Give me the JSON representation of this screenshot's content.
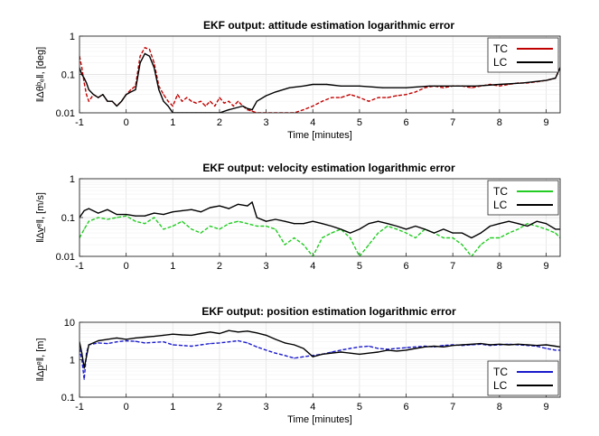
{
  "chart_data": [
    {
      "type": "line",
      "title": "EKF output: attitude estimation logarithmic error",
      "xlabel": "Time [minutes]",
      "ylabel": "‖Δθ̲ᵇₑ‖, [deg]",
      "yscale": "log",
      "xlim": [
        -1,
        9.3
      ],
      "ylim": [
        0.01,
        1
      ],
      "xticks": [
        "-1",
        "0",
        "1",
        "2",
        "3",
        "4",
        "5",
        "6",
        "7",
        "8",
        "9"
      ],
      "yticks": [
        "0.01",
        "0.1",
        "1"
      ],
      "legend_position": "top-right",
      "series": [
        {
          "name": "TC",
          "color": "#c00000",
          "style": "dashed",
          "x": [
            -1.0,
            -0.95,
            -0.9,
            -0.85,
            -0.8,
            -0.7,
            -0.6,
            -0.5,
            -0.4,
            -0.3,
            -0.2,
            -0.1,
            0.0,
            0.1,
            0.2,
            0.3,
            0.4,
            0.5,
            0.6,
            0.7,
            0.8,
            0.9,
            1.0,
            1.1,
            1.2,
            1.3,
            1.4,
            1.5,
            1.6,
            1.7,
            1.8,
            1.9,
            2.0,
            2.1,
            2.2,
            2.3,
            2.4,
            2.5,
            2.6,
            2.7,
            2.8,
            3.6,
            3.8,
            4.0,
            4.2,
            4.4,
            4.6,
            4.8,
            5.0,
            5.2,
            5.4,
            5.6,
            5.8,
            6.0,
            6.2,
            6.4,
            6.6,
            6.8,
            7.0,
            7.2,
            7.4,
            7.6,
            7.8,
            8.0,
            8.2,
            8.4,
            8.6,
            8.8,
            9.0,
            9.2,
            9.3
          ],
          "values": [
            0.3,
            0.15,
            0.06,
            0.03,
            0.02,
            0.03,
            0.025,
            0.03,
            0.02,
            0.02,
            0.015,
            0.02,
            0.03,
            0.04,
            0.05,
            0.3,
            0.5,
            0.45,
            0.2,
            0.05,
            0.03,
            0.02,
            0.015,
            0.03,
            0.02,
            0.025,
            0.02,
            0.018,
            0.02,
            0.015,
            0.02,
            0.015,
            0.025,
            0.018,
            0.02,
            0.015,
            0.02,
            0.015,
            0.012,
            0.011,
            0.01,
            0.01,
            0.012,
            0.015,
            0.02,
            0.025,
            0.025,
            0.03,
            0.025,
            0.02,
            0.025,
            0.025,
            0.028,
            0.03,
            0.035,
            0.045,
            0.05,
            0.045,
            0.05,
            0.05,
            0.045,
            0.05,
            0.055,
            0.05,
            0.055,
            0.06,
            0.06,
            0.065,
            0.07,
            0.08,
            0.15
          ]
        },
        {
          "name": "LC",
          "color": "#000000",
          "style": "solid",
          "x": [
            -1.0,
            -0.95,
            -0.9,
            -0.85,
            -0.8,
            -0.7,
            -0.6,
            -0.5,
            -0.4,
            -0.3,
            -0.2,
            -0.1,
            0.0,
            0.1,
            0.2,
            0.3,
            0.4,
            0.5,
            0.6,
            0.7,
            0.8,
            0.9,
            1.0,
            1.1,
            1.2,
            1.3,
            1.4,
            1.5,
            1.6,
            1.7,
            1.8,
            2.0,
            2.2,
            2.5,
            2.6,
            2.7,
            2.8,
            3.0,
            3.2,
            3.5,
            3.8,
            4.0,
            4.3,
            4.6,
            5.0,
            5.5,
            6.0,
            6.5,
            7.0,
            7.5,
            8.0,
            8.5,
            9.0,
            9.2,
            9.3
          ],
          "values": [
            0.15,
            0.1,
            0.08,
            0.06,
            0.04,
            0.03,
            0.025,
            0.03,
            0.02,
            0.02,
            0.015,
            0.02,
            0.03,
            0.035,
            0.04,
            0.2,
            0.35,
            0.3,
            0.15,
            0.04,
            0.02,
            0.015,
            0.01,
            0.01,
            0.01,
            0.01,
            0.01,
            0.01,
            0.01,
            0.01,
            0.01,
            0.01,
            0.012,
            0.015,
            0.013,
            0.012,
            0.02,
            0.028,
            0.035,
            0.045,
            0.05,
            0.055,
            0.055,
            0.05,
            0.05,
            0.045,
            0.045,
            0.05,
            0.05,
            0.05,
            0.055,
            0.06,
            0.07,
            0.08,
            0.15
          ]
        }
      ]
    },
    {
      "type": "line",
      "title": "EKF output: velocity estimation logarithmic error",
      "xlabel": "",
      "ylabel": "‖Δv̲ᵉ‖, [m/s]",
      "yscale": "log",
      "xlim": [
        -1,
        9.3
      ],
      "ylim": [
        0.01,
        1
      ],
      "xticks": [
        "-1",
        "0",
        "1",
        "2",
        "3",
        "4",
        "5",
        "6",
        "7",
        "8",
        "9"
      ],
      "yticks": [
        "0.01",
        "0.1",
        "1"
      ],
      "legend_position": "top-right",
      "series": [
        {
          "name": "TC",
          "color": "#22cc22",
          "style": "dashed",
          "x": [
            -1.0,
            -0.9,
            -0.8,
            -0.6,
            -0.4,
            -0.2,
            0.0,
            0.2,
            0.4,
            0.6,
            0.8,
            1.0,
            1.2,
            1.4,
            1.6,
            1.8,
            2.0,
            2.2,
            2.4,
            2.6,
            2.8,
            3.0,
            3.2,
            3.4,
            3.6,
            3.8,
            4.0,
            4.2,
            4.4,
            4.6,
            4.8,
            5.0,
            5.2,
            5.4,
            5.6,
            5.8,
            6.0,
            6.2,
            6.4,
            6.6,
            6.8,
            7.0,
            7.2,
            7.4,
            7.6,
            7.8,
            8.0,
            8.2,
            8.4,
            8.6,
            8.8,
            9.0,
            9.2,
            9.3
          ],
          "values": [
            0.03,
            0.05,
            0.08,
            0.1,
            0.09,
            0.1,
            0.11,
            0.08,
            0.07,
            0.1,
            0.05,
            0.06,
            0.08,
            0.05,
            0.04,
            0.06,
            0.05,
            0.07,
            0.08,
            0.07,
            0.06,
            0.06,
            0.05,
            0.02,
            0.03,
            0.02,
            0.01,
            0.03,
            0.04,
            0.05,
            0.03,
            0.01,
            0.02,
            0.04,
            0.06,
            0.05,
            0.04,
            0.03,
            0.05,
            0.04,
            0.03,
            0.03,
            0.02,
            0.01,
            0.02,
            0.03,
            0.03,
            0.04,
            0.05,
            0.07,
            0.06,
            0.05,
            0.04,
            0.03
          ]
        },
        {
          "name": "LC",
          "color": "#000000",
          "style": "solid",
          "x": [
            -1.0,
            -0.9,
            -0.8,
            -0.6,
            -0.4,
            -0.2,
            0.0,
            0.2,
            0.4,
            0.6,
            0.8,
            1.0,
            1.2,
            1.4,
            1.6,
            1.8,
            2.0,
            2.2,
            2.4,
            2.6,
            2.7,
            2.8,
            3.0,
            3.2,
            3.4,
            3.6,
            3.8,
            4.0,
            4.2,
            4.4,
            4.6,
            4.8,
            5.0,
            5.2,
            5.4,
            5.6,
            5.8,
            6.0,
            6.2,
            6.4,
            6.6,
            6.8,
            7.0,
            7.2,
            7.4,
            7.6,
            7.8,
            8.0,
            8.2,
            8.4,
            8.6,
            8.8,
            9.0,
            9.2,
            9.3
          ],
          "values": [
            0.1,
            0.15,
            0.17,
            0.13,
            0.16,
            0.12,
            0.12,
            0.11,
            0.11,
            0.13,
            0.12,
            0.14,
            0.15,
            0.16,
            0.14,
            0.18,
            0.2,
            0.17,
            0.22,
            0.2,
            0.25,
            0.1,
            0.08,
            0.09,
            0.08,
            0.07,
            0.07,
            0.08,
            0.07,
            0.06,
            0.05,
            0.04,
            0.05,
            0.07,
            0.08,
            0.07,
            0.06,
            0.05,
            0.06,
            0.05,
            0.04,
            0.05,
            0.04,
            0.04,
            0.03,
            0.04,
            0.06,
            0.07,
            0.08,
            0.07,
            0.06,
            0.08,
            0.07,
            0.05,
            0.05
          ]
        }
      ]
    },
    {
      "type": "line",
      "title": "EKF output: position estimation logarithmic error",
      "xlabel": "Time [minutes]",
      "ylabel": "‖Δp̲ᵉ‖, [m]",
      "yscale": "log",
      "xlim": [
        -1,
        9.3
      ],
      "ylim": [
        0.1,
        10
      ],
      "xticks": [
        "-1",
        "0",
        "1",
        "2",
        "3",
        "4",
        "5",
        "6",
        "7",
        "8",
        "9"
      ],
      "yticks": [
        "0.1",
        "1",
        "10"
      ],
      "legend_position": "bottom-right",
      "series": [
        {
          "name": "TC",
          "color": "#1a1acc",
          "style": "dashed",
          "x": [
            -1.0,
            -0.95,
            -0.9,
            -0.85,
            -0.8,
            -0.6,
            -0.4,
            -0.2,
            0.0,
            0.2,
            0.4,
            0.6,
            0.8,
            1.0,
            1.2,
            1.4,
            1.6,
            1.8,
            2.0,
            2.2,
            2.4,
            2.6,
            2.8,
            3.0,
            3.2,
            3.4,
            3.6,
            3.8,
            4.0,
            4.2,
            4.4,
            4.6,
            4.8,
            5.0,
            5.2,
            5.4,
            5.6,
            5.8,
            6.0,
            6.2,
            6.4,
            6.6,
            6.8,
            7.0,
            7.2,
            7.4,
            7.6,
            7.8,
            8.0,
            8.2,
            8.4,
            8.6,
            8.8,
            9.0,
            9.2,
            9.3
          ],
          "values": [
            2.0,
            1.0,
            0.3,
            1.5,
            2.5,
            2.8,
            2.7,
            3.0,
            3.2,
            3.1,
            2.8,
            2.9,
            3.0,
            2.5,
            2.4,
            2.3,
            2.5,
            2.7,
            2.8,
            3.0,
            3.2,
            2.8,
            2.2,
            1.8,
            1.5,
            1.3,
            1.1,
            1.2,
            1.3,
            1.4,
            1.6,
            1.8,
            2.0,
            2.2,
            2.3,
            2.0,
            1.9,
            2.0,
            2.1,
            2.2,
            2.3,
            2.2,
            2.4,
            2.5,
            2.4,
            2.5,
            2.6,
            2.4,
            2.5,
            2.6,
            2.5,
            2.4,
            2.3,
            2.0,
            1.8,
            1.8
          ]
        },
        {
          "name": "LC",
          "color": "#000000",
          "style": "solid",
          "x": [
            -1.0,
            -0.95,
            -0.9,
            -0.85,
            -0.8,
            -0.6,
            -0.4,
            -0.2,
            0.0,
            0.2,
            0.4,
            0.6,
            0.8,
            1.0,
            1.2,
            1.4,
            1.6,
            1.8,
            2.0,
            2.2,
            2.4,
            2.6,
            2.8,
            3.0,
            3.2,
            3.4,
            3.6,
            3.8,
            4.0,
            4.2,
            4.4,
            4.6,
            4.8,
            5.0,
            5.2,
            5.4,
            5.6,
            5.8,
            6.0,
            6.2,
            6.4,
            6.6,
            6.8,
            7.0,
            7.2,
            7.4,
            7.6,
            7.8,
            8.0,
            8.2,
            8.4,
            8.6,
            8.8,
            9.0,
            9.2,
            9.3
          ],
          "values": [
            3.0,
            1.5,
            0.6,
            1.2,
            2.5,
            3.2,
            3.5,
            3.8,
            3.5,
            3.8,
            4.0,
            4.2,
            4.5,
            4.8,
            4.6,
            4.5,
            5.0,
            5.5,
            5.0,
            6.0,
            5.5,
            5.8,
            5.2,
            4.5,
            3.5,
            2.8,
            2.5,
            2.0,
            1.2,
            1.4,
            1.5,
            1.6,
            1.5,
            1.4,
            1.5,
            1.6,
            1.8,
            1.7,
            1.8,
            2.0,
            2.2,
            2.3,
            2.2,
            2.4,
            2.5,
            2.6,
            2.7,
            2.5,
            2.6,
            2.5,
            2.6,
            2.5,
            2.4,
            2.5,
            2.3,
            2.2
          ]
        }
      ]
    }
  ]
}
